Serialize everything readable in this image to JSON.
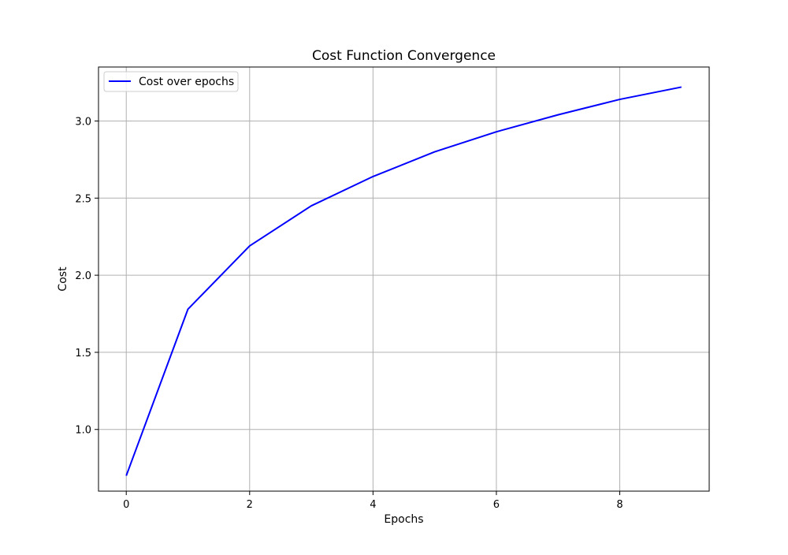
{
  "chart_data": {
    "type": "line",
    "title": "Cost Function Convergence",
    "xlabel": "Epochs",
    "ylabel": "Cost",
    "xlim": [
      -0.45,
      9.45
    ],
    "ylim": [
      0.6,
      3.35
    ],
    "x_ticks": [
      0,
      2,
      4,
      6,
      8
    ],
    "y_ticks": [
      1.0,
      1.5,
      2.0,
      2.5,
      3.0
    ],
    "x_tick_labels": [
      "0",
      "2",
      "4",
      "6",
      "8"
    ],
    "y_tick_labels": [
      "1.0",
      "1.5",
      "2.0",
      "2.5",
      "3.0"
    ],
    "grid": true,
    "legend_position": "top-left",
    "series": [
      {
        "name": "Cost over epochs",
        "color": "#0000ff",
        "x": [
          0,
          1,
          2,
          3,
          4,
          5,
          6,
          7,
          8,
          9
        ],
        "y": [
          0.7,
          1.78,
          2.19,
          2.45,
          2.64,
          2.8,
          2.93,
          3.04,
          3.14,
          3.22
        ]
      }
    ]
  }
}
